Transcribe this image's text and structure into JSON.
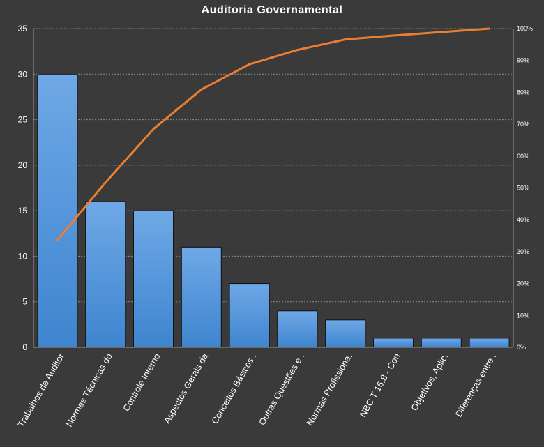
{
  "chart_data": {
    "type": "bar",
    "title": "Auditoria  Governamental",
    "categories": [
      "Trabalhos de Auditor",
      "Normas Técnicas do",
      "Controle Interno",
      "Aspectos Gerais da",
      "Conceitos Básicos .",
      "Outras Questões e .",
      "Normas Profissiona.",
      "NBC T 16.8 - Con",
      "Objetivos, Aplic.",
      "Diferenças entre ."
    ],
    "series": [
      {
        "values": [
          30,
          16,
          15,
          11,
          7,
          4,
          3,
          1,
          1,
          1
        ]
      },
      {
        "values": [
          33.7,
          51.7,
          68.5,
          80.9,
          88.8,
          93.3,
          96.6,
          97.8,
          98.9,
          100
        ]
      }
    ],
    "ylim": [
      0,
      35
    ],
    "yticks": [
      "0",
      "5",
      "10",
      "15",
      "20",
      "25",
      "30",
      "35"
    ],
    "y2lim": [
      0,
      100
    ],
    "y2ticks": [
      "0%",
      "10%",
      "20%",
      "30%",
      "40%",
      "50%",
      "60%",
      "70%",
      "80%",
      "90%",
      "100%"
    ],
    "grid": true,
    "colors": {
      "bar_top": "#6fa8e6",
      "bar_bottom": "#3e85cf",
      "line": "#ed7d31",
      "grid": "#8a8a8a",
      "text": "#ffffff"
    }
  }
}
